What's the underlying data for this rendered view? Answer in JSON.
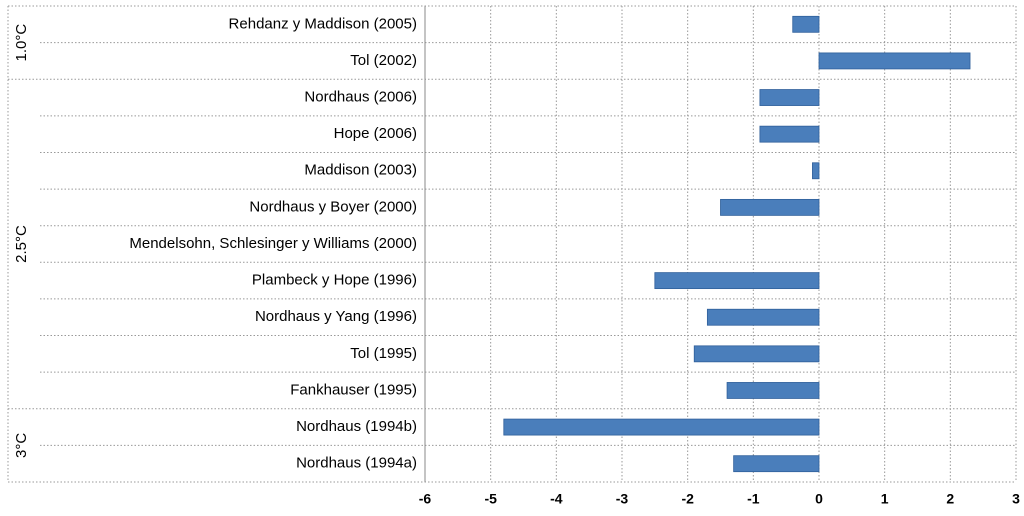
{
  "chart_data": {
    "type": "bar",
    "orientation": "horizontal",
    "categories": [
      "Rehdanz y Maddison (2005)",
      "Tol (2002)",
      "Nordhaus (2006)",
      "Hope (2006)",
      "Maddison (2003)",
      "Nordhaus y Boyer (2000)",
      "Mendelsohn, Schlesinger y Williams (2000)",
      "Plambeck y Hope (1996)",
      "Nordhaus y Yang (1996)",
      "Tol (1995)",
      "Fankhauser (1995)",
      "Nordhaus (1994b)",
      "Nordhaus (1994a)"
    ],
    "values": [
      -0.4,
      2.3,
      -0.9,
      -0.9,
      -0.1,
      -1.5,
      0,
      -2.5,
      -1.7,
      -1.9,
      -1.4,
      -4.8,
      -1.3
    ],
    "groups": [
      {
        "label": "1.0°C",
        "count": 2
      },
      {
        "label": "2.5°C",
        "count": 9
      },
      {
        "label": "3°C",
        "count": 2
      }
    ],
    "color": "#4a7ebb",
    "xlim": [
      -6,
      3
    ],
    "xticks": [
      -6,
      -5,
      -4,
      -3,
      -2,
      -1,
      0,
      1,
      2,
      3
    ],
    "grid": true
  }
}
